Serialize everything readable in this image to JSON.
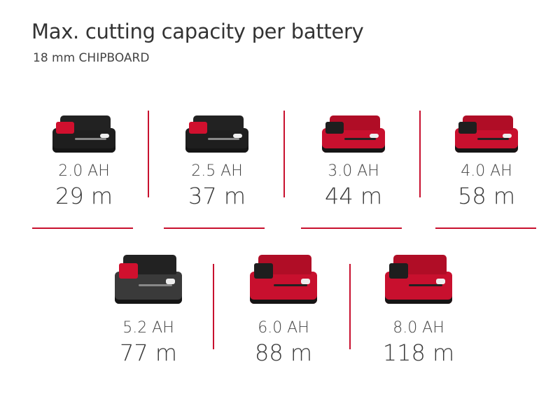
{
  "title": "Max. cutting capacity per battery",
  "subtitle": "18 mm CHIPBOARD",
  "accent_color": "#c8102e",
  "batteries": [
    {
      "capacity": "2.0 AH",
      "distance": "29 m",
      "style": "black-compact"
    },
    {
      "capacity": "2.5 AH",
      "distance": "37 m",
      "style": "black-compact"
    },
    {
      "capacity": "3.0 AH",
      "distance": "44 m",
      "style": "red-compact"
    },
    {
      "capacity": "4.0 AH",
      "distance": "58 m",
      "style": "red-compact"
    },
    {
      "capacity": "5.2 AH",
      "distance": "77 m",
      "style": "black-large"
    },
    {
      "capacity": "6.0 AH",
      "distance": "88 m",
      "style": "red-large"
    },
    {
      "capacity": "8.0 AH",
      "distance": "118 m",
      "style": "red-large"
    }
  ]
}
